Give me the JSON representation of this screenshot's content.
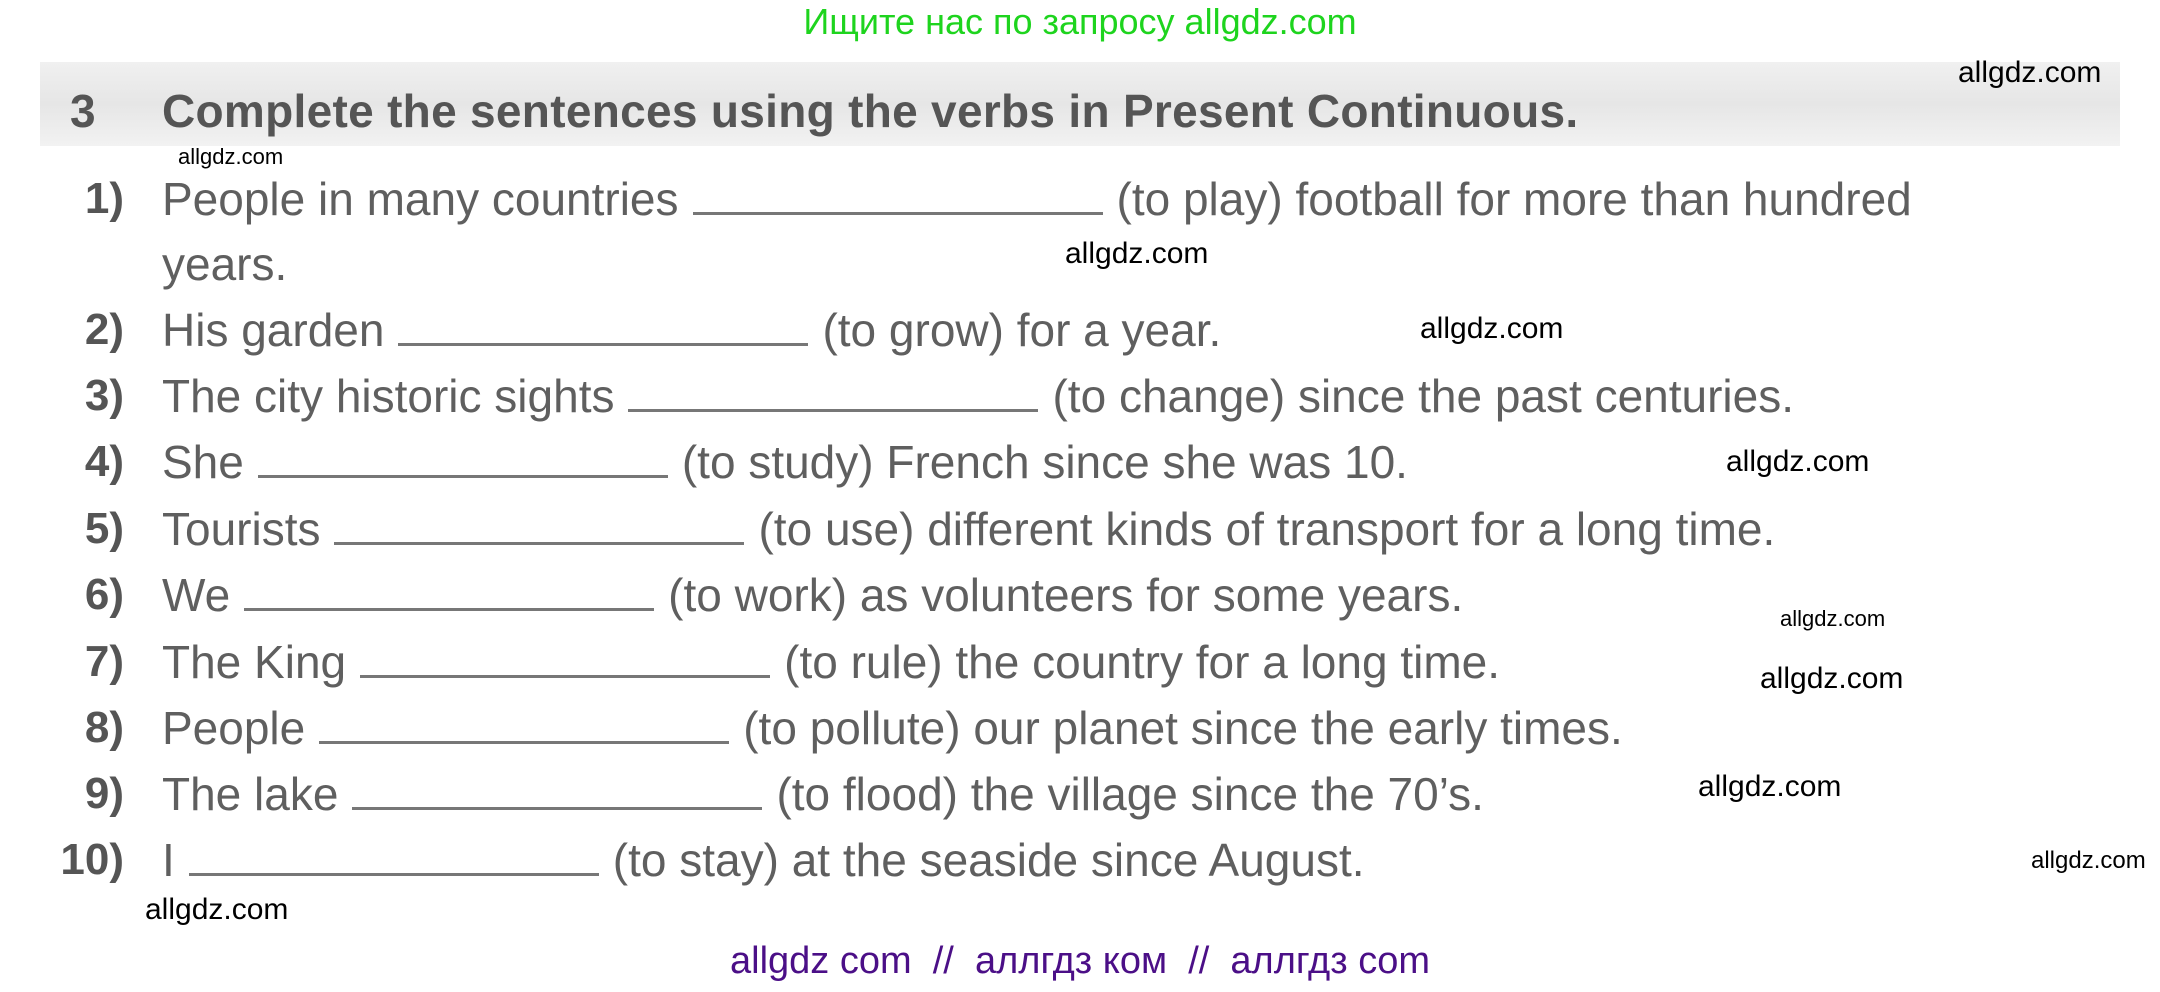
{
  "top_banner": "Ищите нас по запросу allgdz.com",
  "task": {
    "number": "3",
    "title": "Complete the sentences using the verbs in Present Continuous."
  },
  "items": [
    {
      "num": "1)",
      "before": "People in many countries",
      "after": "(to play) football for more than hundred",
      "cont": "years."
    },
    {
      "num": "2)",
      "before": "His garden",
      "after": "(to grow) for a year."
    },
    {
      "num": "3)",
      "before": "The city historic sights",
      "after": "(to change) since the past centuries."
    },
    {
      "num": "4)",
      "before": "She",
      "after": "(to study) French since she was 10."
    },
    {
      "num": "5)",
      "before": "Tourists",
      "after": "(to use) different kinds of transport for a long time."
    },
    {
      "num": "6)",
      "before": "We",
      "after": "(to work) as volunteers for some years."
    },
    {
      "num": "7)",
      "before": "The King",
      "after": "(to rule) the country for a long time."
    },
    {
      "num": "8)",
      "before": "People",
      "after": "(to pollute) our planet since the early times."
    },
    {
      "num": "9)",
      "before": "The lake",
      "after": "(to flood) the village since the 70’s."
    },
    {
      "num": "10)",
      "before": "I",
      "after": "(to stay) at the seaside since August."
    }
  ],
  "watermark": "allgdz.com",
  "bottom_banner": "allgdz com  //  аллгдз ком  //  аллгдз com",
  "colors": {
    "top_banner": "#1ed41e",
    "bottom_banner": "#4b0f87",
    "text": "#5f5f5f"
  }
}
